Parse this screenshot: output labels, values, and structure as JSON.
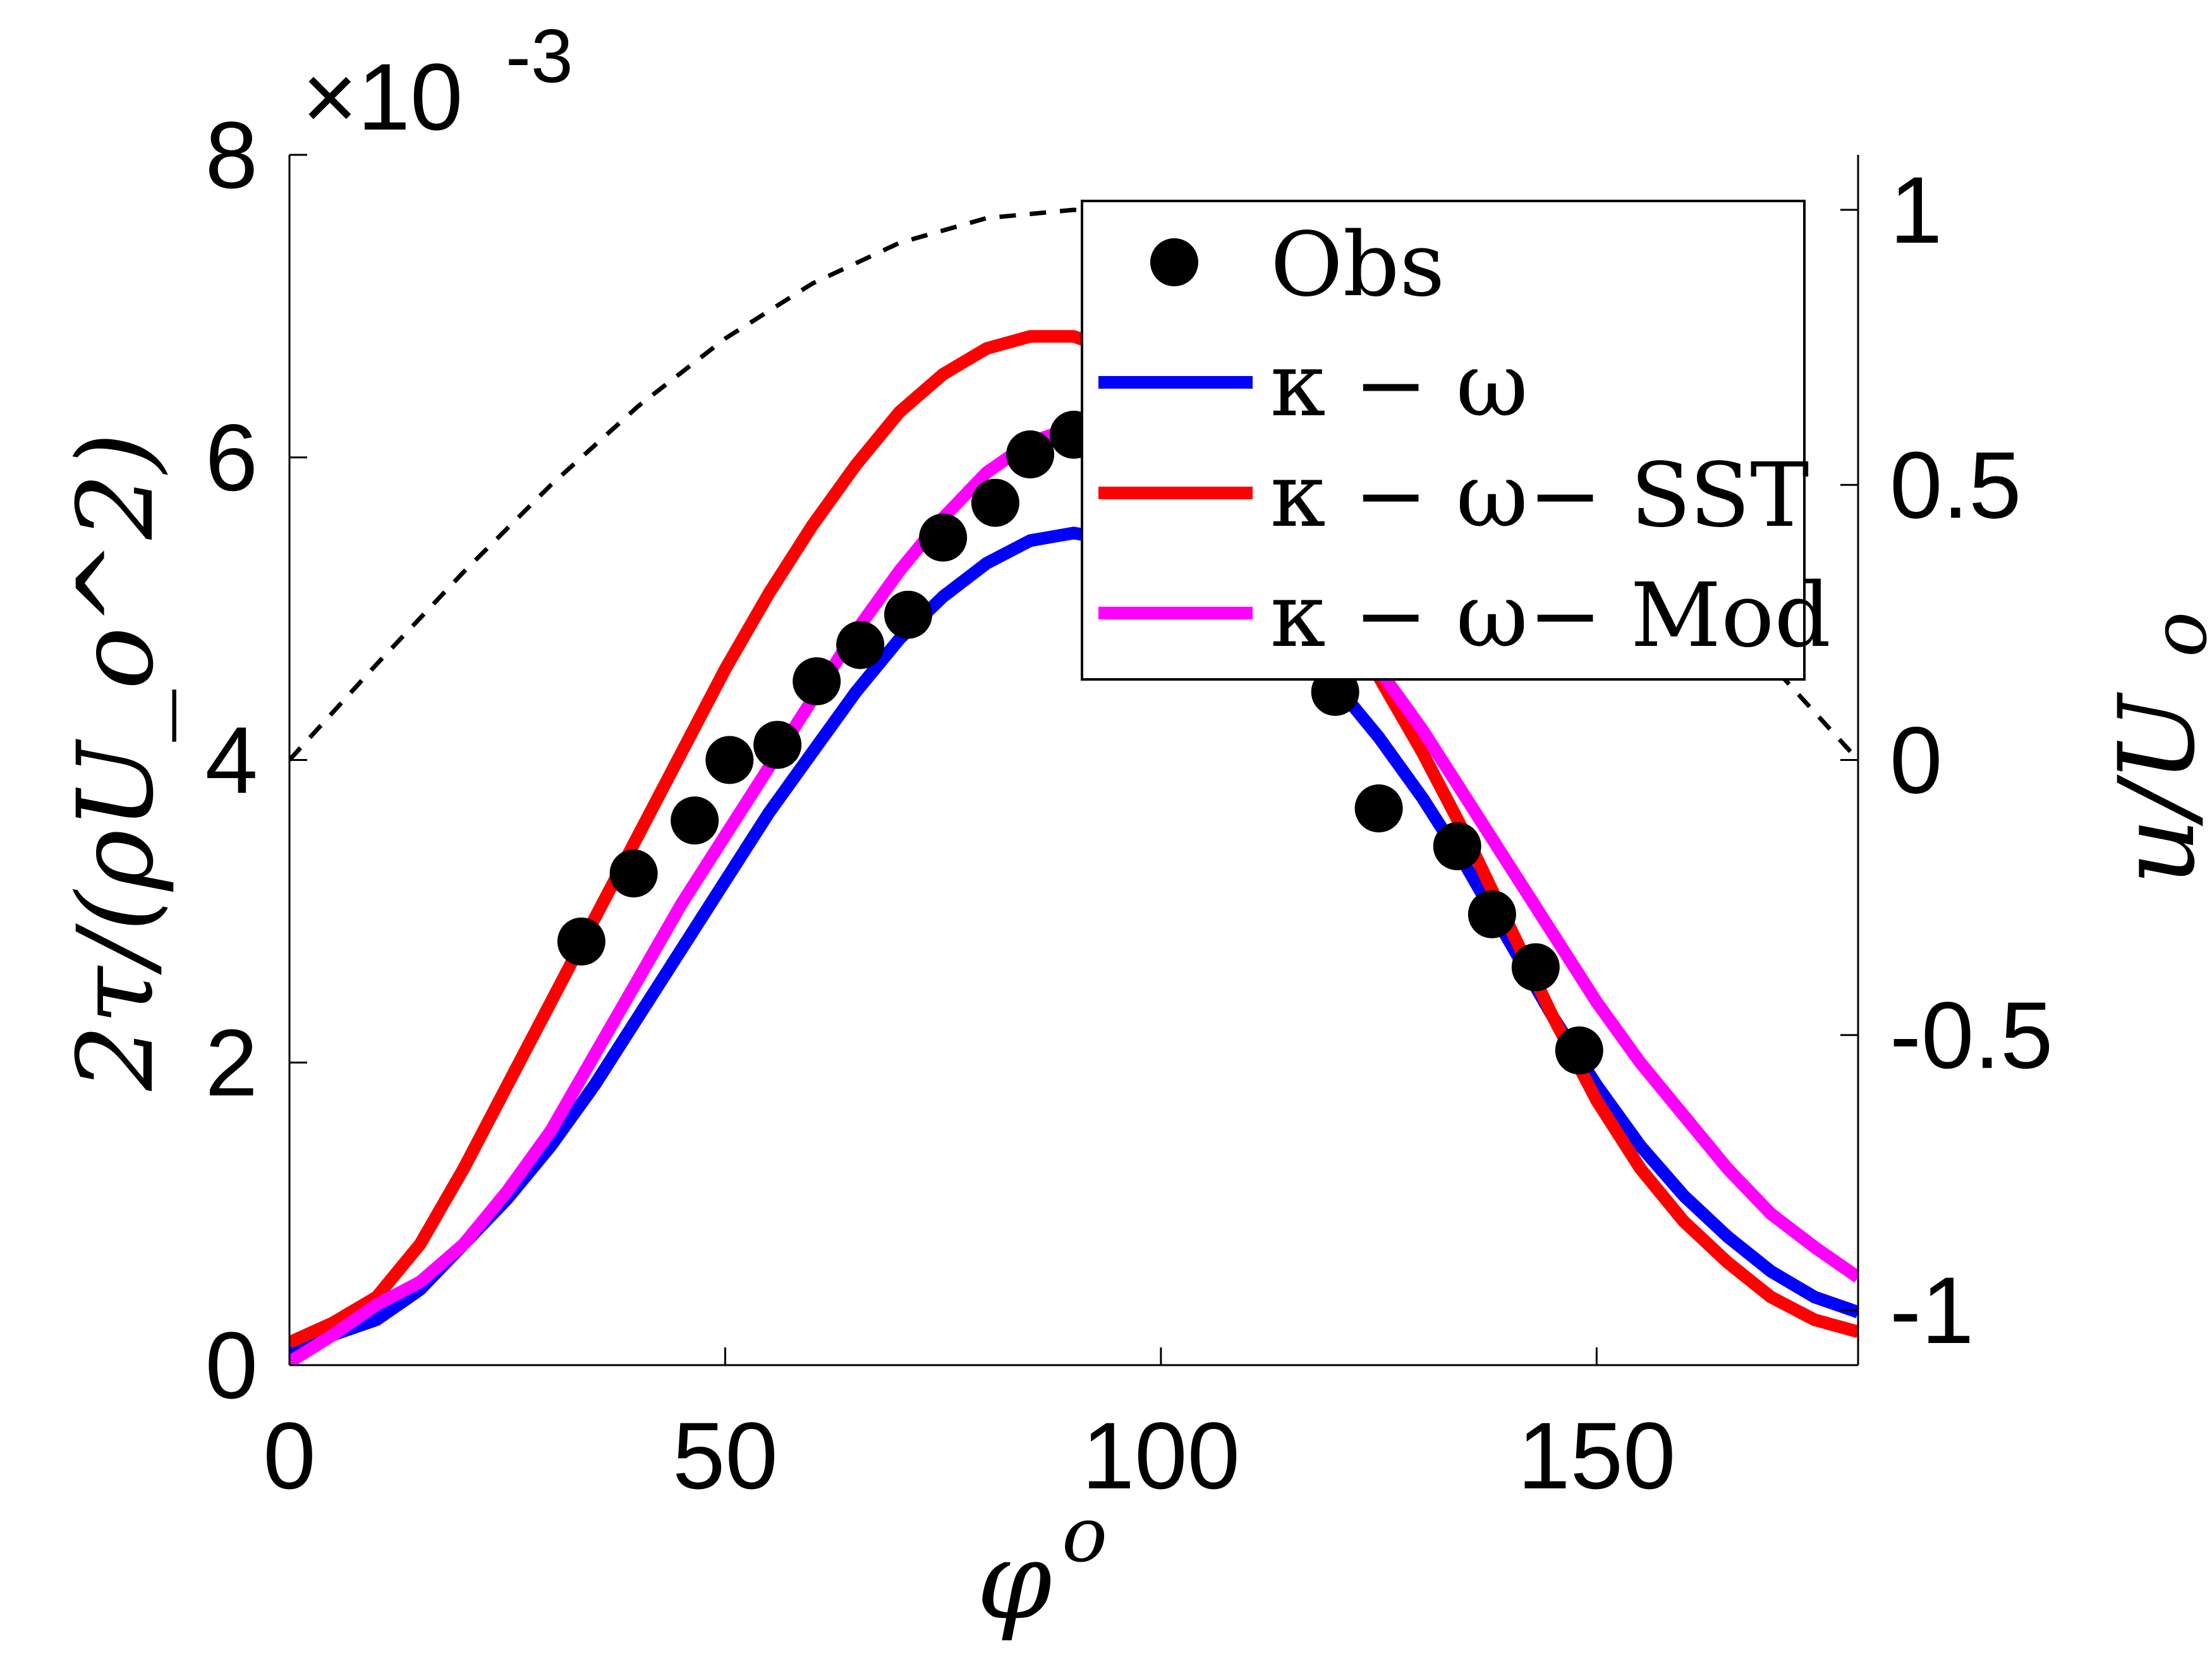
{
  "chart_data": {
    "type": "line",
    "xlabel": "φ",
    "xlabel_superscript": "o",
    "ylabel_left": "2τ/(ρU_o^2)",
    "ylabel_right": "u/U",
    "ylabel_right_subscript": "o",
    "y_exponent_label": "×10",
    "y_exponent_power": "-3",
    "xlim": [
      0,
      180
    ],
    "ylim_left": [
      0,
      8
    ],
    "ylim_right": [
      -1.1,
      1.1
    ],
    "x_ticks": [
      0,
      50,
      100,
      150
    ],
    "x_tick_labels": [
      "0",
      "50",
      "100",
      "150"
    ],
    "y_left_ticks": [
      0,
      2,
      4,
      6,
      8
    ],
    "y_left_tick_labels": [
      "0",
      "2",
      "4",
      "6",
      "8"
    ],
    "y_right_ticks": [
      -1,
      -0.5,
      0,
      0.5,
      1
    ],
    "y_right_tick_labels": [
      "-1",
      "-0.5",
      "0",
      "0.5",
      "1"
    ],
    "grid": false,
    "legend_position": "top-right",
    "legend": [
      {
        "label": "Obs",
        "color": "#000000",
        "marker": "dot"
      },
      {
        "label": "κ − ω",
        "color": "#0000ff",
        "marker": "line"
      },
      {
        "label": "κ − ω− SST",
        "color": "#ff0000",
        "marker": "line"
      },
      {
        "label": "κ − ω− Mod",
        "color": "#ff00ff",
        "marker": "line"
      }
    ],
    "series": [
      {
        "name": "Obs",
        "type": "scatter",
        "color": "#000000",
        "axis": "left",
        "x": [
          33.5,
          39.5,
          46.5,
          50.5,
          56,
          60.5,
          65.5,
          71,
          75,
          81,
          85,
          90,
          120,
          125,
          134,
          138,
          143,
          148
        ],
        "y": [
          2.8,
          3.25,
          3.6,
          4.0,
          4.1,
          4.52,
          4.76,
          4.96,
          5.47,
          5.7,
          6.02,
          6.15,
          4.45,
          3.68,
          3.43,
          2.98,
          2.63,
          2.08
        ]
      },
      {
        "name": "κ − ω",
        "type": "line",
        "color": "#0000ff",
        "axis": "left",
        "x": [
          0,
          5,
          10,
          15,
          20,
          25,
          30,
          35,
          40,
          45,
          50,
          55,
          60,
          65,
          70,
          75,
          80,
          85,
          90,
          95,
          100,
          105,
          110,
          115,
          120,
          125,
          130,
          135,
          140,
          145,
          150,
          155,
          160,
          165,
          170,
          175,
          180
        ],
        "y": [
          0.08,
          0.2,
          0.3,
          0.5,
          0.8,
          1.1,
          1.45,
          1.85,
          2.3,
          2.75,
          3.2,
          3.65,
          4.05,
          4.45,
          4.8,
          5.08,
          5.3,
          5.45,
          5.5,
          5.45,
          5.35,
          5.2,
          5.0,
          4.75,
          4.5,
          4.15,
          3.75,
          3.3,
          2.8,
          2.3,
          1.85,
          1.45,
          1.12,
          0.85,
          0.62,
          0.45,
          0.35
        ]
      },
      {
        "name": "κ − ω− SST",
        "type": "line",
        "color": "#ff0000",
        "axis": "left",
        "x": [
          0,
          5,
          10,
          15,
          20,
          25,
          30,
          35,
          40,
          45,
          50,
          55,
          60,
          65,
          70,
          75,
          80,
          85,
          90,
          95,
          100,
          105,
          110,
          115,
          120,
          125,
          130,
          135,
          140,
          145,
          150,
          155,
          160,
          165,
          170,
          175,
          180
        ],
        "y": [
          0.15,
          0.28,
          0.45,
          0.8,
          1.3,
          1.85,
          2.4,
          2.95,
          3.5,
          4.05,
          4.6,
          5.1,
          5.55,
          5.95,
          6.3,
          6.55,
          6.72,
          6.8,
          6.8,
          6.7,
          6.5,
          6.25,
          5.9,
          5.45,
          5.0,
          4.55,
          4.05,
          3.5,
          2.9,
          2.3,
          1.75,
          1.3,
          0.95,
          0.68,
          0.45,
          0.3,
          0.22
        ]
      },
      {
        "name": "κ − ω− Mod",
        "type": "line",
        "color": "#ff00ff",
        "axis": "left",
        "x": [
          0,
          5,
          10,
          15,
          20,
          25,
          30,
          35,
          40,
          45,
          50,
          55,
          60,
          65,
          70,
          75,
          80,
          85,
          90,
          95,
          100,
          105,
          110,
          115,
          120,
          125,
          130,
          135,
          140,
          145,
          150,
          155,
          160,
          165,
          170,
          175,
          180
        ],
        "y": [
          0.02,
          0.2,
          0.4,
          0.55,
          0.8,
          1.15,
          1.55,
          2.05,
          2.55,
          3.05,
          3.5,
          3.95,
          4.4,
          4.85,
          5.25,
          5.6,
          5.9,
          6.1,
          6.2,
          6.2,
          6.1,
          5.9,
          5.65,
          5.35,
          5.0,
          4.6,
          4.2,
          3.75,
          3.3,
          2.85,
          2.4,
          2.0,
          1.65,
          1.3,
          1.0,
          0.78,
          0.58
        ]
      },
      {
        "name": "u/U_o",
        "type": "line",
        "color": "#000000",
        "axis": "right",
        "dashed": true,
        "x": [
          0,
          10,
          20,
          30,
          40,
          50,
          60,
          70,
          80,
          90,
          100,
          110,
          120,
          130,
          140,
          150,
          160,
          170,
          180
        ],
        "y": [
          0.0,
          0.174,
          0.342,
          0.5,
          0.643,
          0.766,
          0.866,
          0.94,
          0.985,
          1.0,
          0.985,
          0.94,
          0.866,
          0.766,
          0.643,
          0.5,
          0.342,
          0.174,
          0.0
        ]
      }
    ]
  }
}
